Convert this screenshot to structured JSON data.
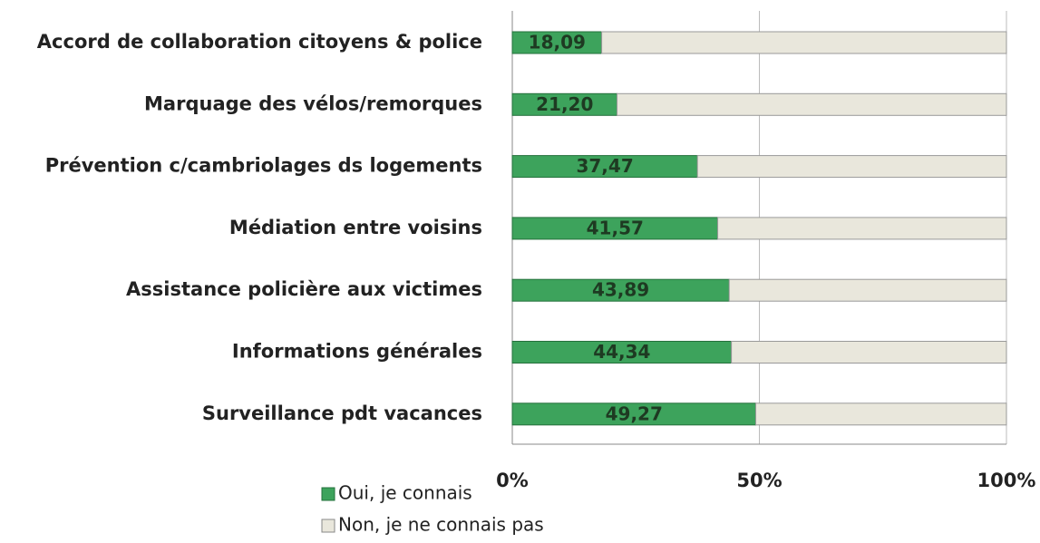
{
  "chart_data": {
    "type": "bar",
    "orientation": "horizontal",
    "stacked": true,
    "categories": [
      "Accord de collaboration citoyens & police",
      "Marquage des vélos/remorques",
      "Prévention c/cambriolages ds  logements",
      "Médiation entre voisins",
      "Assistance policière aux victimes",
      "Informations générales",
      "Surveillance pdt vacances"
    ],
    "series": [
      {
        "name": "Oui, je connais",
        "color": "#3da35c",
        "values": [
          18.09,
          21.2,
          37.47,
          41.57,
          43.89,
          44.34,
          49.27
        ],
        "value_labels": [
          "18,09",
          "21,20",
          "37,47",
          "41,57",
          "43,89",
          "44,34",
          "49,27"
        ]
      },
      {
        "name": "Non, je ne connais pas",
        "color": "#e9e7dc",
        "values": [
          81.91,
          78.8,
          62.53,
          58.43,
          56.11,
          55.66,
          50.73
        ]
      }
    ],
    "xlim": [
      0,
      100
    ],
    "xticks": [
      {
        "value": 0,
        "label": "0%"
      },
      {
        "value": 50,
        "label": "50%"
      },
      {
        "value": 100,
        "label": "100%"
      }
    ],
    "grid": true,
    "legend": "bottom-left"
  }
}
